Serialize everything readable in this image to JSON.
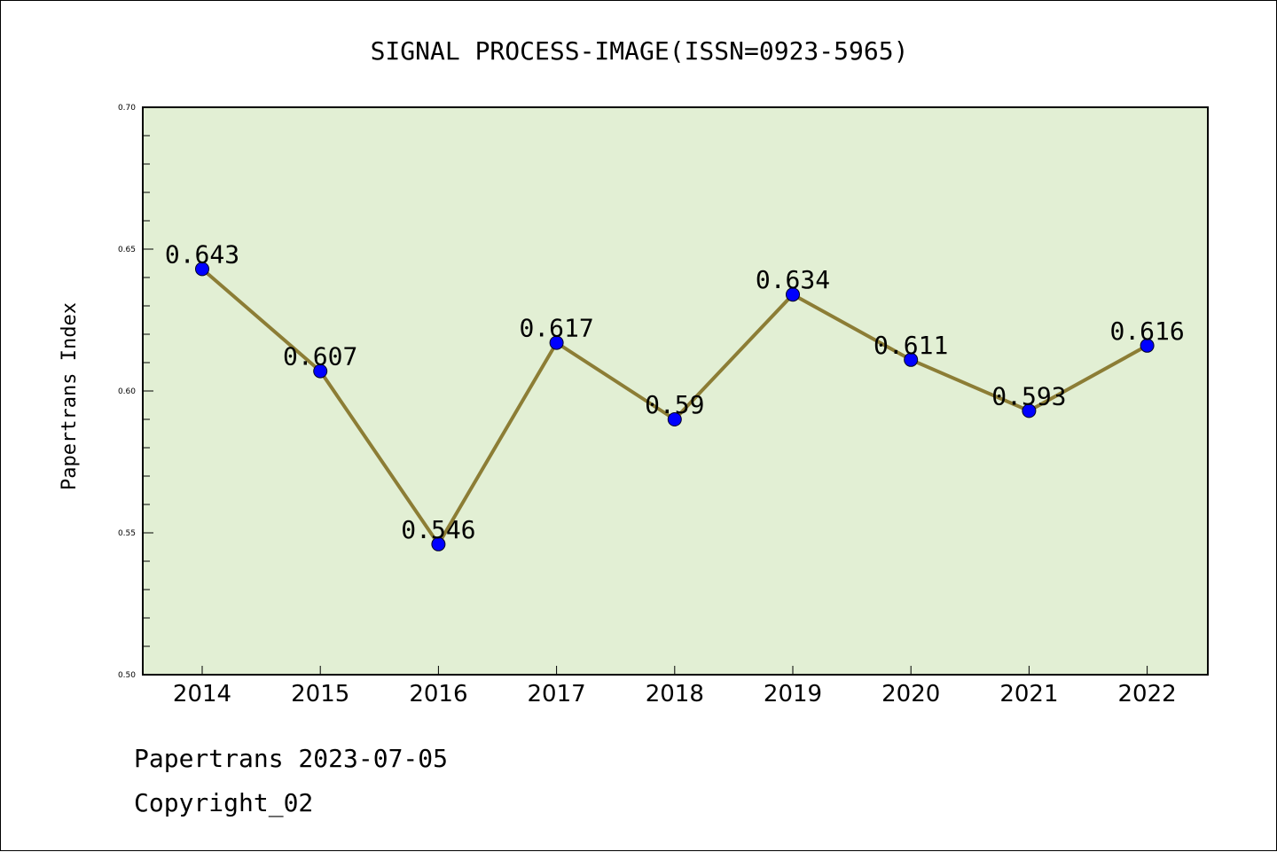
{
  "chart_data": {
    "type": "line",
    "title": "SIGNAL PROCESS-IMAGE(ISSN=0923-5965)",
    "xlabel": "",
    "ylabel": "Papertrans Index",
    "categories": [
      "2014",
      "2015",
      "2016",
      "2017",
      "2018",
      "2019",
      "2020",
      "2021",
      "2022"
    ],
    "values": [
      0.643,
      0.607,
      0.546,
      0.617,
      0.59,
      0.634,
      0.611,
      0.593,
      0.616
    ],
    "data_labels": [
      "0.643",
      "0.607",
      "0.546",
      "0.617",
      "0.59",
      "0.634",
      "0.611",
      "0.593",
      "0.616"
    ],
    "ylim": [
      0.5,
      0.7
    ],
    "yticks": [
      0.5,
      0.55,
      0.6,
      0.65,
      0.7
    ],
    "ytick_labels": [
      "0.50",
      "0.55",
      "0.60",
      "0.65",
      "0.70"
    ],
    "grid": false,
    "legend": "none",
    "colors": {
      "plot_background": "#e2efd4",
      "line": "#8c7d35",
      "marker": "#0000ff"
    }
  },
  "footer": {
    "line1": "Papertrans 2023-07-05",
    "line2": "Copyright_02"
  }
}
